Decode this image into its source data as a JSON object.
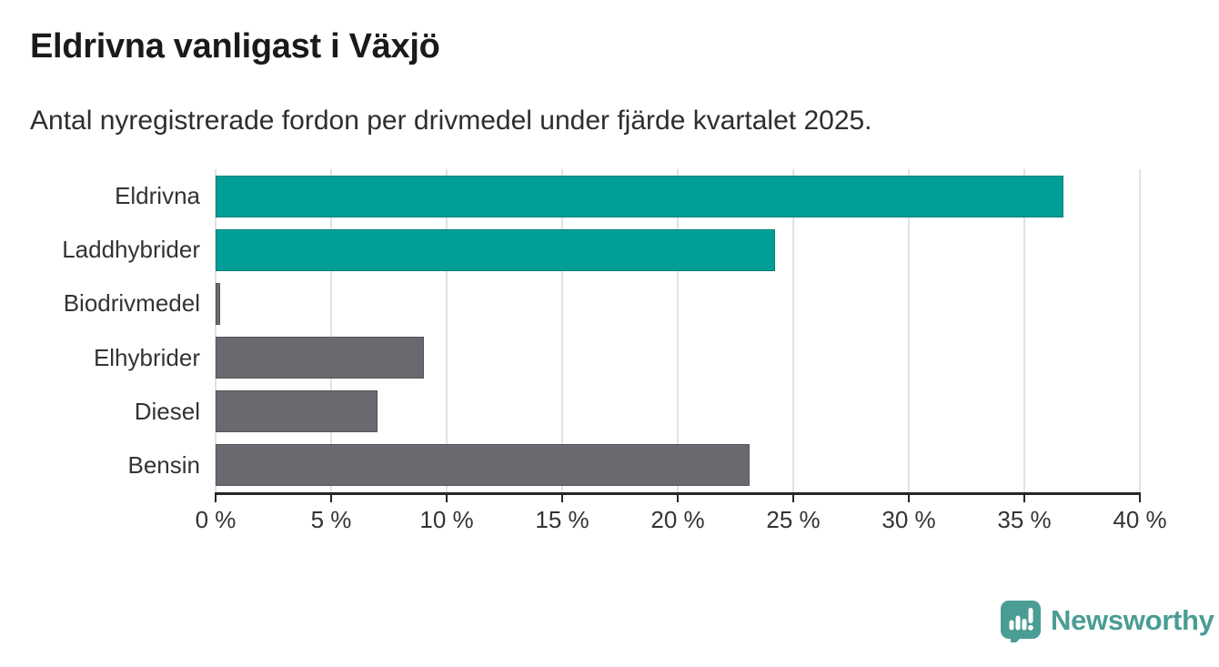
{
  "header": {
    "title": "Eldrivna vanligast i Växjö",
    "subtitle": "Antal nyregistrerade fordon per drivmedel under fjärde kvartalet 2025."
  },
  "chart_data": {
    "type": "bar",
    "orientation": "horizontal",
    "title": "Eldrivna vanligast i Växjö",
    "subtitle": "Antal nyregistrerade fordon per drivmedel under fjärde kvartalet 2025.",
    "categories": [
      "Eldrivna",
      "Laddhybrider",
      "Biodrivmedel",
      "Elhybrider",
      "Diesel",
      "Bensin"
    ],
    "values": [
      36.7,
      24.2,
      0.2,
      9.0,
      7.0,
      23.1
    ],
    "unit": "%",
    "xlim": [
      0,
      40
    ],
    "x_ticks": [
      0,
      5,
      10,
      15,
      20,
      25,
      30,
      35,
      40
    ],
    "x_tick_labels": [
      "0 %",
      "5 %",
      "10 %",
      "15 %",
      "20 %",
      "25 %",
      "30 %",
      "35 %",
      "40 %"
    ],
    "grid": "vertical-on",
    "legend": "none",
    "bar_colors": [
      "#009e96",
      "#009e96",
      "#6b6870",
      "#6b6870",
      "#6b6870",
      "#6b6870"
    ],
    "highlight_color": "#009e96",
    "base_color": "#6b6870"
  },
  "colors": {
    "background": "#ffffff",
    "grid": "#e2e2e2",
    "axis": "#262626",
    "title_text": "#1a1a1a",
    "label_text": "#333333",
    "brand_teal": "#4a9d94"
  },
  "footer": {
    "brand": "Newsworthy",
    "logo_icon": "speech-bubble-bar-chart-icon"
  }
}
